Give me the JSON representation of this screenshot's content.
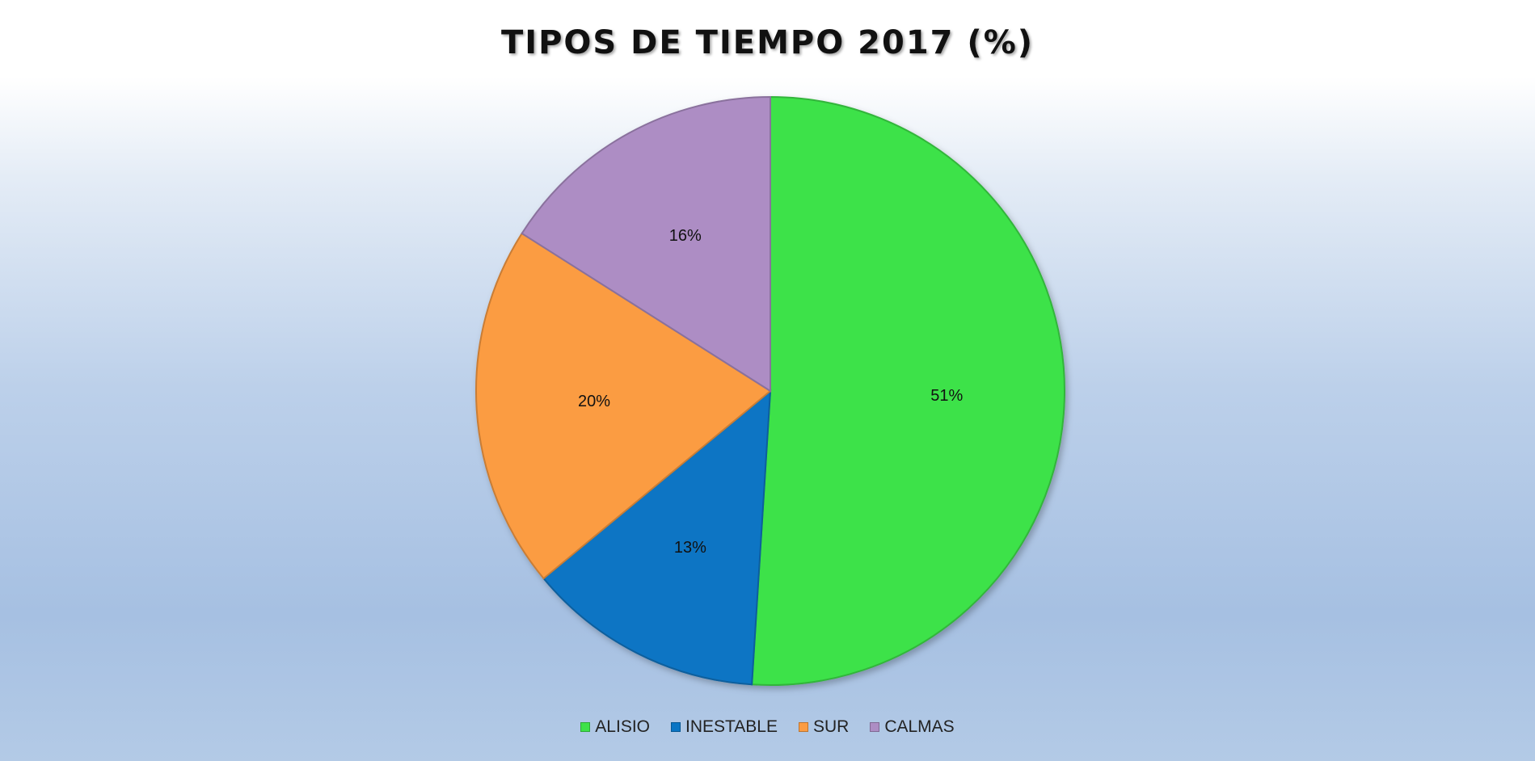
{
  "chart_data": {
    "type": "pie",
    "title": "TIPOS DE TIEMPO 2017 (%)",
    "categories": [
      "ALISIO",
      "INESTABLE",
      "SUR",
      "CALMAS"
    ],
    "values": [
      51,
      13,
      20,
      16
    ],
    "data_labels": [
      "51%",
      "13%",
      "20%",
      "16%"
    ],
    "colors": [
      "#3ee249",
      "#0a75c4",
      "#fb9c43",
      "#ad8dc4"
    ],
    "legend_position": "bottom",
    "start_angle": "12 o'clock, clockwise"
  }
}
